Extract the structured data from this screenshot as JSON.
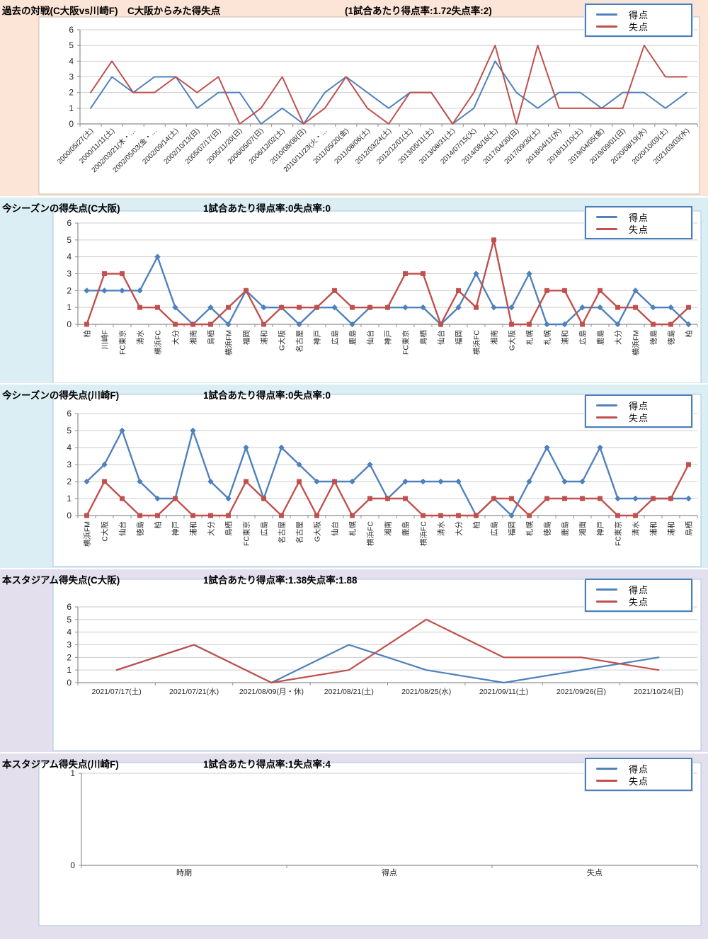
{
  "colors": {
    "goals": "#4F81BD",
    "conceded": "#C0504D",
    "panel_bg": [
      "#FCE4D6",
      "#DAEEF3",
      "#DAEEF3",
      "#E4DFEC",
      "#E4DFEC"
    ],
    "legend_border": "#4A7EBB",
    "chart_bg": "#FFFFFF",
    "chart_border_first": "#C9BDB1",
    "chart_border": "#A9C7E2",
    "grid": "#CDCDCD",
    "axis": "#8E8E8E",
    "label_text": "#262626"
  },
  "legend": {
    "goals_label": "得点",
    "conceded_label": "失点"
  },
  "panels": [
    {
      "title": "過去の対戦(C大阪vs川崎F)　C大阪からみた得失点",
      "rate": "(1試合あたり得点率:1.72失点率:2)"
    },
    {
      "title": "今シーズンの得失点(C大阪)",
      "rate": "1試合あたり得点率:0失点率:0"
    },
    {
      "title": "今シーズンの得失点(川崎F)",
      "rate": "1試合あたり得点率:0失点率:0"
    },
    {
      "title": "本スタジアム得失点(C大阪)",
      "rate": "1試合あたり得点率:1.38失点率:1.88"
    },
    {
      "title": "本スタジアム得失点(川崎F)",
      "rate": "1試合あたり得点率:1失点率:4"
    }
  ],
  "chart_data": [
    {
      "type": "line",
      "title": "過去の対戦(C大阪vs川崎F) C大阪からみた得失点",
      "ylim": [
        0,
        6
      ],
      "yticks": [
        0,
        1,
        2,
        3,
        4,
        5,
        6
      ],
      "grid": true,
      "legend_position": "top-right",
      "label_orientation": "rot45",
      "categories": [
        "2000/05/27(土)",
        "2000/11/11(土)",
        "2002/03/21(木・…",
        "2002/05/03(金・…",
        "2002/09/14(土)",
        "2002/10/13(日)",
        "2005/07/17(日)",
        "2005/11/20(日)",
        "2006/05/07(日)",
        "2006/12/02(土)",
        "2010/08/08(日)",
        "2010/11/23(火・…",
        "2011/05/20(金)",
        "2011/08/06(土)",
        "2012/03/24(土)",
        "2012/12/01(土)",
        "2013/05/11(土)",
        "2013/08/31(土)",
        "2014/07/15(火)",
        "2014/08/16(土)",
        "2017/04/30(日)",
        "2017/09/30(土)",
        "2018/04/11(水)",
        "2018/11/10(土)",
        "2019/04/05(金)",
        "2019/09/01(日)",
        "2020/08/19(水)",
        "2020/10/03(土)",
        "2021/03/03(水)"
      ],
      "series": [
        {
          "name": "得点",
          "marker": "none",
          "values": [
            1,
            3,
            2,
            3,
            3,
            1,
            2,
            2,
            0,
            1,
            0,
            2,
            3,
            2,
            1,
            2,
            2,
            0,
            1,
            4,
            2,
            1,
            2,
            2,
            1,
            2,
            2,
            1,
            2
          ]
        },
        {
          "name": "失点",
          "marker": "none",
          "values": [
            2,
            4,
            2,
            2,
            3,
            2,
            3,
            0,
            1,
            3,
            0,
            1,
            3,
            1,
            0,
            2,
            2,
            0,
            2,
            5,
            0,
            5,
            1,
            1,
            1,
            1,
            5,
            3,
            3
          ]
        }
      ]
    },
    {
      "type": "line",
      "title": "今シーズンの得失点(C大阪)",
      "ylim": [
        0,
        6
      ],
      "yticks": [
        0,
        1,
        2,
        3,
        4,
        5,
        6
      ],
      "grid": true,
      "legend_position": "top-right",
      "label_orientation": "vertical",
      "categories": [
        "柏",
        "川崎F",
        "FC東京",
        "清水",
        "横浜FC",
        "大分",
        "湘南",
        "鳥栖",
        "横浜FM",
        "福岡",
        "浦和",
        "G大阪",
        "名古屋",
        "神戸",
        "広島",
        "鹿島",
        "仙台",
        "神戸",
        "FC東京",
        "鳥栖",
        "仙台",
        "福岡",
        "横浜FC",
        "湘南",
        "G大阪",
        "札幌",
        "札幌",
        "浦和",
        "広島",
        "鹿島",
        "大分",
        "横浜FM",
        "徳島",
        "徳島",
        "柏"
      ],
      "series": [
        {
          "name": "得点",
          "marker": "diamond",
          "values": [
            2,
            2,
            2,
            2,
            4,
            1,
            0,
            1,
            0,
            2,
            1,
            1,
            0,
            1,
            1,
            0,
            1,
            1,
            1,
            1,
            0,
            1,
            3,
            1,
            1,
            3,
            0,
            0,
            1,
            1,
            0,
            2,
            1,
            1,
            0
          ]
        },
        {
          "name": "失点",
          "marker": "square",
          "values": [
            0,
            3,
            3,
            1,
            1,
            0,
            0,
            0,
            1,
            2,
            0,
            1,
            1,
            1,
            2,
            1,
            1,
            1,
            3,
            3,
            0,
            2,
            1,
            5,
            0,
            0,
            2,
            2,
            0,
            2,
            1,
            1,
            0,
            0,
            1
          ]
        }
      ]
    },
    {
      "type": "line",
      "title": "今シーズンの得失点(川崎F)",
      "ylim": [
        0,
        6
      ],
      "yticks": [
        0,
        1,
        2,
        3,
        4,
        5,
        6
      ],
      "grid": true,
      "legend_position": "top-right",
      "label_orientation": "vertical",
      "categories": [
        "横浜FM",
        "C大阪",
        "仙台",
        "徳島",
        "柏",
        "神戸",
        "浦和",
        "大分",
        "鳥栖",
        "FC東京",
        "広島",
        "名古屋",
        "名古屋",
        "G大阪",
        "仙台",
        "札幌",
        "横浜FC",
        "湘南",
        "鹿島",
        "横浜FC",
        "清水",
        "大分",
        "柏",
        "広島",
        "福岡",
        "札幌",
        "徳島",
        "鹿島",
        "湘南",
        "神戸",
        "FC東京",
        "清水",
        "浦和",
        "浦和",
        "鳥栖"
      ],
      "series": [
        {
          "name": "得点",
          "marker": "diamond",
          "values": [
            2,
            3,
            5,
            2,
            1,
            1,
            5,
            2,
            1,
            4,
            1,
            4,
            3,
            2,
            2,
            2,
            3,
            1,
            2,
            2,
            2,
            2,
            0,
            1,
            0,
            2,
            4,
            2,
            2,
            4,
            1,
            1,
            1,
            1,
            1
          ]
        },
        {
          "name": "失点",
          "marker": "square",
          "values": [
            0,
            2,
            1,
            0,
            0,
            1,
            0,
            0,
            0,
            2,
            1,
            0,
            2,
            0,
            2,
            0,
            1,
            1,
            1,
            0,
            0,
            0,
            0,
            1,
            1,
            0,
            1,
            1,
            1,
            1,
            0,
            0,
            1,
            1,
            3
          ]
        }
      ]
    },
    {
      "type": "line",
      "title": "本スタジアム得失点(C大阪)",
      "ylim": [
        0,
        6
      ],
      "yticks": [
        0,
        1,
        2,
        3,
        4,
        5,
        6
      ],
      "grid": true,
      "legend_position": "top-right",
      "label_orientation": "horizontal",
      "categories": [
        "2021/07/17(土)",
        "2021/07/21(水)",
        "2021/08/09(月・休)",
        "2021/08/21(土)",
        "2021/08/25(水)",
        "2021/09/11(土)",
        "2021/09/26(日)",
        "2021/10/24(日)"
      ],
      "series": [
        {
          "name": "得点",
          "marker": "none",
          "values": [
            1,
            3,
            0,
            3,
            1,
            0,
            1,
            2
          ]
        },
        {
          "name": "失点",
          "marker": "none",
          "values": [
            1,
            3,
            0,
            1,
            5,
            2,
            2,
            1
          ]
        }
      ]
    },
    {
      "type": "line",
      "title": "本スタジアム得失点(川崎F)",
      "ylim": [
        0,
        1
      ],
      "yticks": [
        0,
        1
      ],
      "grid": true,
      "legend_position": "top-right",
      "label_orientation": "horizontal",
      "categories": [
        "時期",
        "得点",
        "失点"
      ],
      "series": [
        {
          "name": "得点",
          "marker": "none",
          "values": []
        },
        {
          "name": "失点",
          "marker": "none",
          "values": []
        }
      ]
    }
  ]
}
